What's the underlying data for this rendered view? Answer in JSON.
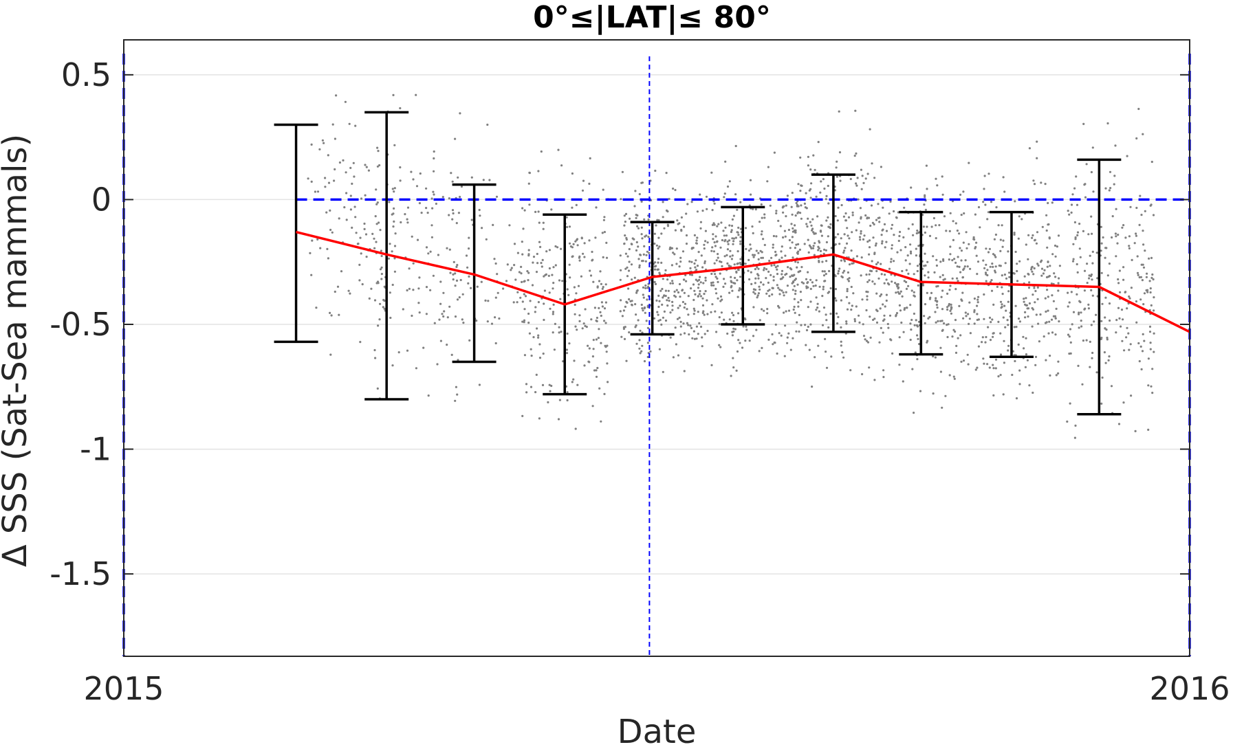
{
  "chart_data": {
    "type": "scatter",
    "title": "0°≤|LAT|≤ 80°",
    "xlabel": "Date",
    "ylabel": "Δ SSS (Sat-Sea mammals)",
    "x_axis": {
      "type": "date",
      "range": [
        "2015-01-01",
        "2016-01-01"
      ],
      "ticks": [
        "2015",
        "2016"
      ]
    },
    "y_axis": {
      "range": [
        -1.83,
        0.64
      ],
      "ticks": [
        0.5,
        0,
        -0.5,
        -1,
        -1.5
      ],
      "tick_labels": [
        "0.5",
        "0",
        "-0.5",
        "-1",
        "-1.5"
      ]
    },
    "grid": true,
    "series": [
      {
        "kind": "monthly-mean-with-errorbars",
        "color": "#ff0000",
        "errorbar_color": "#000000",
        "points": [
          {
            "date": "2015-03-01",
            "mean": -0.13,
            "low": -0.57,
            "high": 0.3
          },
          {
            "date": "2015-04-01",
            "mean": -0.22,
            "low": -0.8,
            "high": 0.35
          },
          {
            "date": "2015-05-01",
            "mean": -0.3,
            "low": -0.65,
            "high": 0.06
          },
          {
            "date": "2015-06-01",
            "mean": -0.42,
            "low": -0.78,
            "high": -0.06
          },
          {
            "date": "2015-07-01",
            "mean": -0.31,
            "low": -0.54,
            "high": -0.09
          },
          {
            "date": "2015-08-01",
            "mean": -0.27,
            "low": -0.5,
            "high": -0.03
          },
          {
            "date": "2015-09-01",
            "mean": -0.22,
            "low": -0.53,
            "high": 0.1
          },
          {
            "date": "2015-10-01",
            "mean": -0.33,
            "low": -0.62,
            "high": -0.05
          },
          {
            "date": "2015-11-01",
            "mean": -0.34,
            "low": -0.63,
            "high": -0.05
          },
          {
            "date": "2015-12-01",
            "mean": -0.35,
            "low": -0.86,
            "high": 0.16
          },
          {
            "date": "2016-01-01",
            "mean": -0.53
          }
        ]
      }
    ],
    "scatter_points": {
      "color": "#808080",
      "clusters": [
        {
          "date": "2015-03-20",
          "center": -0.1,
          "spread": 0.3,
          "count": 110
        },
        {
          "date": "2015-04-12",
          "center": -0.2,
          "spread": 0.35,
          "count": 140
        },
        {
          "date": "2015-05-10",
          "center": -0.3,
          "spread": 0.3,
          "count": 80
        },
        {
          "date": "2015-06-01",
          "center": -0.4,
          "spread": 0.32,
          "count": 230
        },
        {
          "date": "2015-07-05",
          "center": -0.3,
          "spread": 0.22,
          "count": 380
        },
        {
          "date": "2015-08-05",
          "center": -0.27,
          "spread": 0.22,
          "count": 400
        },
        {
          "date": "2015-09-03",
          "center": -0.22,
          "spread": 0.27,
          "count": 380
        },
        {
          "date": "2015-10-03",
          "center": -0.32,
          "spread": 0.27,
          "count": 320
        },
        {
          "date": "2015-11-03",
          "center": -0.35,
          "spread": 0.27,
          "count": 300
        },
        {
          "date": "2015-12-05",
          "center": -0.35,
          "spread": 0.35,
          "count": 260
        }
      ]
    },
    "reference_lines": [
      {
        "orientation": "horizontal",
        "y": 0,
        "x_from": "2015-03-01",
        "x_to": "2016-01-01",
        "color": "#0000ff",
        "style": "dashed"
      },
      {
        "orientation": "vertical",
        "x": "2015-06-30",
        "color": "#0000ff",
        "style": "dashed"
      },
      {
        "orientation": "vertical",
        "x": "2015-01-01",
        "color": "#0000ff",
        "style": "dashed"
      },
      {
        "orientation": "vertical",
        "x": "2016-01-01",
        "color": "#0000ff",
        "style": "dashed"
      }
    ]
  }
}
